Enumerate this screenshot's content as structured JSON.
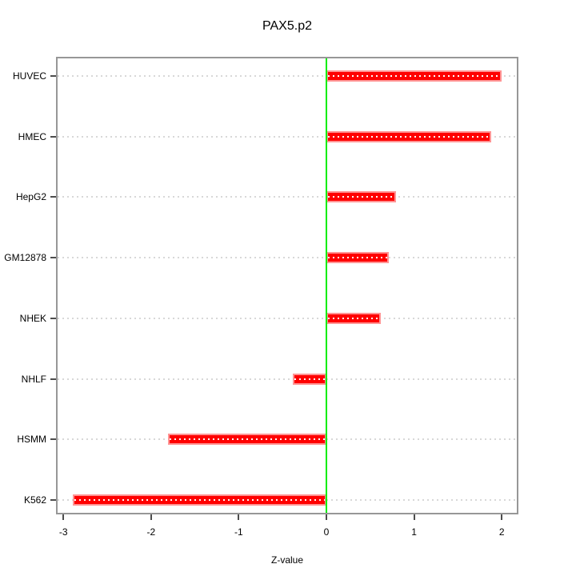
{
  "chart_data": {
    "type": "bar",
    "orientation": "horizontal",
    "title": "PAX5.p2",
    "xlabel": "Z-value",
    "categories": [
      "HUVEC",
      "HMEC",
      "HepG2",
      "GM12878",
      "NHEK",
      "NHLF",
      "HSMM",
      "K562"
    ],
    "values": [
      2.0,
      1.88,
      0.79,
      0.71,
      0.62,
      -0.38,
      -1.81,
      -2.89
    ],
    "xticks": [
      -3,
      -2,
      -1,
      0,
      1,
      2
    ],
    "xlim": [
      -3.07,
      2.17
    ],
    "grid": "dotted horizontal line per category",
    "legend": "none",
    "zero_reference_line": 0,
    "colors": {
      "bar_fill": "#ff0000",
      "bar_edge": "#ff9494",
      "bar_center_dash": "#ffffff",
      "zero_line": "#00ee00",
      "gridline": "#d8d8d8",
      "frame": "#979797",
      "tick": "#4d4d4d",
      "text": "#000000",
      "background": "#ffffff"
    }
  }
}
